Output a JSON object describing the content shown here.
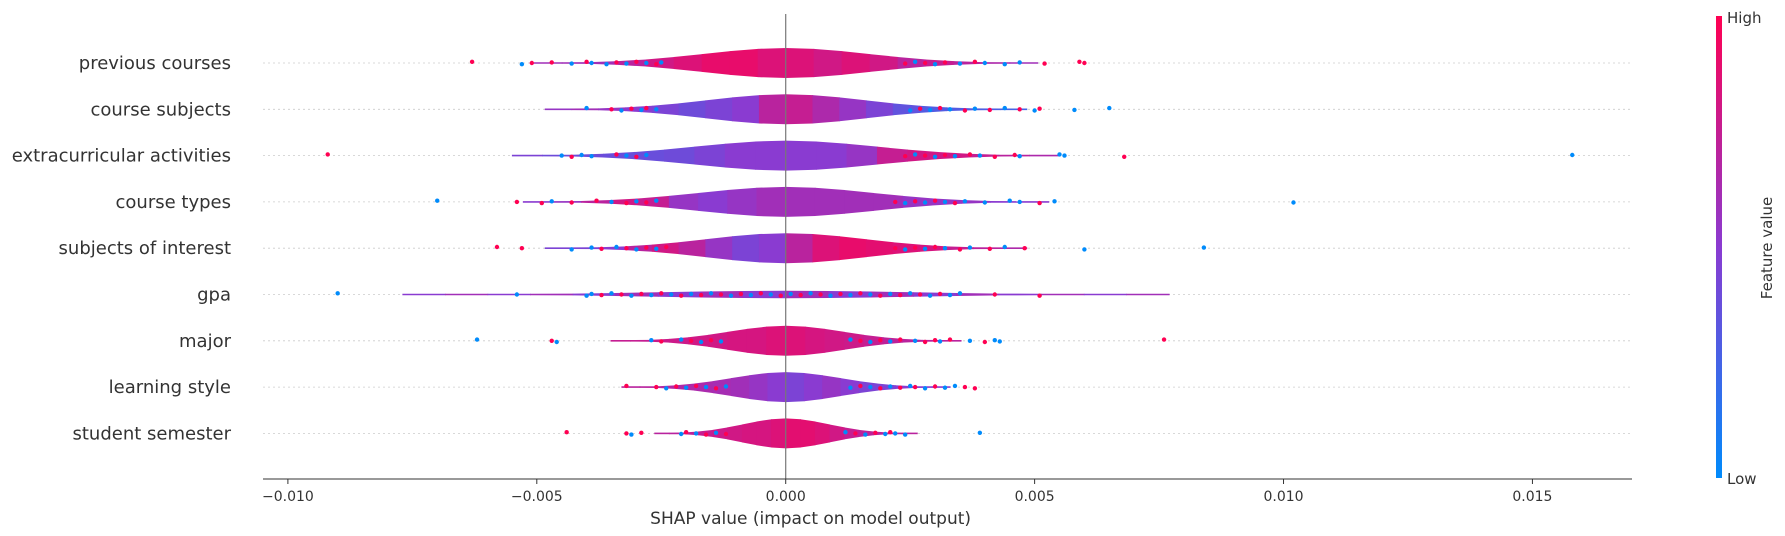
{
  "chart_data": {
    "type": "violin-beeswarm",
    "xlabel": "SHAP value (impact on model output)",
    "xlim": [
      -0.0105,
      0.017
    ],
    "xticks": [
      -0.01,
      -0.005,
      0.0,
      0.005,
      0.01,
      0.015
    ],
    "xtick_labels": [
      "−0.010",
      "−0.005",
      "0.000",
      "0.005",
      "0.010",
      "0.015"
    ],
    "colorbar": {
      "title": "Feature value",
      "high_label": "High",
      "low_label": "Low",
      "low_color": "#008bfb",
      "mid_color": "#8a3bd1",
      "high_color": "#ff0052"
    },
    "features": [
      {
        "name": "previous courses",
        "spread": 0.0023,
        "amp": 1.0,
        "points": [
          [
            -0.0063,
            1
          ],
          [
            -0.0051,
            1
          ],
          [
            -0.0053,
            0
          ],
          [
            -0.0047,
            1
          ],
          [
            -0.0043,
            0
          ],
          [
            -0.004,
            1
          ],
          [
            -0.0039,
            0
          ],
          [
            -0.0036,
            0
          ],
          [
            -0.0034,
            1
          ],
          [
            -0.0032,
            0
          ],
          [
            -0.003,
            1
          ],
          [
            -0.0028,
            0
          ],
          [
            -0.0026,
            1
          ],
          [
            -0.0025,
            0
          ],
          [
            0.0024,
            1
          ],
          [
            0.0026,
            0
          ],
          [
            0.0028,
            1
          ],
          [
            0.003,
            0
          ],
          [
            0.0032,
            1
          ],
          [
            0.0035,
            0
          ],
          [
            0.0038,
            1
          ],
          [
            0.004,
            0
          ],
          [
            0.0044,
            0
          ],
          [
            0.0047,
            0
          ],
          [
            0.0052,
            1
          ],
          [
            0.0059,
            1
          ],
          [
            0.006,
            1
          ]
        ],
        "segments": [
          0.6,
          0.6,
          0.6,
          0.7,
          0.8,
          0.85,
          0.9,
          0.9,
          0.85,
          0.85,
          0.8,
          0.85,
          0.8,
          0.7,
          0.75,
          0.7,
          0.65,
          0.6
        ]
      },
      {
        "name": "course subjects",
        "spread": 0.0022,
        "amp": 1.0,
        "points": [
          [
            -0.004,
            0
          ],
          [
            -0.0035,
            1
          ],
          [
            -0.0033,
            0
          ],
          [
            -0.0031,
            1
          ],
          [
            -0.0029,
            0
          ],
          [
            -0.0028,
            1
          ],
          [
            -0.0026,
            0
          ],
          [
            0.0025,
            0
          ],
          [
            0.0027,
            1
          ],
          [
            0.0029,
            0
          ],
          [
            0.0031,
            1
          ],
          [
            0.0033,
            0
          ],
          [
            0.0036,
            1
          ],
          [
            0.0038,
            0
          ],
          [
            0.0041,
            1
          ],
          [
            0.0044,
            0
          ],
          [
            0.0047,
            1
          ],
          [
            0.005,
            0
          ],
          [
            0.0051,
            1
          ],
          [
            0.0058,
            0
          ],
          [
            0.0065,
            0
          ]
        ],
        "segments": [
          0.55,
          0.6,
          0.55,
          0.5,
          0.45,
          0.4,
          0.45,
          0.5,
          0.7,
          0.75,
          0.65,
          0.55,
          0.45,
          0.35,
          0.3,
          0.3,
          0.28,
          0.25
        ]
      },
      {
        "name": "extracurricular activities",
        "spread": 0.0025,
        "amp": 1.0,
        "points": [
          [
            -0.0092,
            1
          ],
          [
            -0.0045,
            0
          ],
          [
            -0.0043,
            1
          ],
          [
            -0.0041,
            0
          ],
          [
            -0.0039,
            0
          ],
          [
            -0.0034,
            1
          ],
          [
            -0.0032,
            0
          ],
          [
            -0.003,
            1
          ],
          [
            -0.0028,
            0
          ],
          [
            0.0024,
            1
          ],
          [
            0.0026,
            0
          ],
          [
            0.0028,
            1
          ],
          [
            0.003,
            0
          ],
          [
            0.0032,
            1
          ],
          [
            0.0034,
            0
          ],
          [
            0.0037,
            1
          ],
          [
            0.0039,
            0
          ],
          [
            0.0042,
            1
          ],
          [
            0.0046,
            1
          ],
          [
            0.0047,
            0
          ],
          [
            0.0055,
            0
          ],
          [
            0.0056,
            0
          ],
          [
            0.0068,
            1
          ],
          [
            0.0158,
            0
          ]
        ],
        "segments": [
          0.45,
          0.4,
          0.4,
          0.38,
          0.38,
          0.4,
          0.45,
          0.5,
          0.5,
          0.5,
          0.5,
          0.55,
          0.75,
          0.8,
          0.8,
          0.75,
          0.7,
          0.65
        ]
      },
      {
        "name": "course types",
        "spread": 0.0024,
        "amp": 1.0,
        "points": [
          [
            -0.007,
            0
          ],
          [
            -0.0054,
            1
          ],
          [
            -0.0049,
            1
          ],
          [
            -0.0047,
            0
          ],
          [
            -0.0043,
            1
          ],
          [
            -0.0038,
            1
          ],
          [
            -0.0035,
            0
          ],
          [
            -0.0032,
            1
          ],
          [
            -0.003,
            0
          ],
          [
            -0.0028,
            1
          ],
          [
            -0.0026,
            0
          ],
          [
            0.0022,
            1
          ],
          [
            0.0024,
            0
          ],
          [
            0.0026,
            1
          ],
          [
            0.0028,
            0
          ],
          [
            0.003,
            1
          ],
          [
            0.0032,
            0
          ],
          [
            0.0034,
            1
          ],
          [
            0.0036,
            0
          ],
          [
            0.004,
            0
          ],
          [
            0.0045,
            0
          ],
          [
            0.0047,
            0
          ],
          [
            0.0051,
            1
          ],
          [
            0.0054,
            0
          ],
          [
            0.0102,
            0
          ]
        ],
        "segments": [
          0.5,
          0.55,
          0.7,
          0.8,
          0.75,
          0.55,
          0.5,
          0.55,
          0.6,
          0.6,
          0.6,
          0.6,
          0.6,
          0.55,
          0.55,
          0.55,
          0.5,
          0.5
        ]
      },
      {
        "name": "subjects of interest",
        "spread": 0.0022,
        "amp": 1.0,
        "points": [
          [
            -0.0058,
            1
          ],
          [
            -0.0053,
            1
          ],
          [
            -0.0043,
            0
          ],
          [
            -0.0039,
            0
          ],
          [
            -0.0037,
            1
          ],
          [
            -0.0034,
            0
          ],
          [
            -0.0032,
            1
          ],
          [
            -0.003,
            0
          ],
          [
            -0.0028,
            1
          ],
          [
            -0.0026,
            0
          ],
          [
            -0.0024,
            1
          ],
          [
            0.0022,
            1
          ],
          [
            0.0024,
            0
          ],
          [
            0.0026,
            1
          ],
          [
            0.0028,
            0
          ],
          [
            0.003,
            1
          ],
          [
            0.0032,
            0
          ],
          [
            0.0035,
            1
          ],
          [
            0.0037,
            0
          ],
          [
            0.0041,
            1
          ],
          [
            0.0044,
            0
          ],
          [
            0.0048,
            1
          ],
          [
            0.006,
            0
          ],
          [
            0.0084,
            0
          ]
        ],
        "segments": [
          0.45,
          0.45,
          0.5,
          0.7,
          0.8,
          0.7,
          0.55,
          0.45,
          0.5,
          0.7,
          0.85,
          0.9,
          0.88,
          0.85,
          0.82,
          0.75,
          0.7,
          0.65
        ]
      },
      {
        "name": "gpa",
        "spread": 0.0035,
        "amp": 0.25,
        "points": [
          [
            -0.009,
            0
          ],
          [
            -0.0054,
            0
          ],
          [
            -0.004,
            0
          ],
          [
            -0.0039,
            0
          ],
          [
            -0.0037,
            1
          ],
          [
            -0.0035,
            0
          ],
          [
            -0.0033,
            1
          ],
          [
            -0.0031,
            0
          ],
          [
            -0.0029,
            1
          ],
          [
            -0.0027,
            0
          ],
          [
            -0.0025,
            1
          ],
          [
            -0.0023,
            0
          ],
          [
            -0.0021,
            1
          ],
          [
            -0.0019,
            0
          ],
          [
            -0.0017,
            1
          ],
          [
            -0.0015,
            0
          ],
          [
            -0.0013,
            1
          ],
          [
            -0.0011,
            0
          ],
          [
            -0.0009,
            1
          ],
          [
            -0.0007,
            0
          ],
          [
            -0.0005,
            1
          ],
          [
            -0.0003,
            0
          ],
          [
            -0.0001,
            1
          ],
          [
            0.0001,
            0
          ],
          [
            0.0003,
            1
          ],
          [
            0.0005,
            0
          ],
          [
            0.0007,
            1
          ],
          [
            0.0009,
            0
          ],
          [
            0.0011,
            1
          ],
          [
            0.0013,
            0
          ],
          [
            0.0015,
            1
          ],
          [
            0.0017,
            0
          ],
          [
            0.0019,
            1
          ],
          [
            0.0021,
            0
          ],
          [
            0.0023,
            1
          ],
          [
            0.0025,
            0
          ],
          [
            0.0027,
            1
          ],
          [
            0.0029,
            0
          ],
          [
            0.0031,
            1
          ],
          [
            0.0033,
            0
          ],
          [
            0.0035,
            0
          ],
          [
            0.0042,
            1
          ],
          [
            0.0051,
            1
          ]
        ],
        "segments": [
          0.5,
          0.6,
          0.5,
          0.6,
          0.5,
          0.6,
          0.5,
          0.6,
          0.5,
          0.6,
          0.5,
          0.6,
          0.5,
          0.6,
          0.5,
          0.6,
          0.5,
          0.6
        ]
      },
      {
        "name": "major",
        "spread": 0.0016,
        "amp": 1.0,
        "points": [
          [
            -0.0062,
            0
          ],
          [
            -0.0047,
            1
          ],
          [
            -0.0046,
            0
          ],
          [
            -0.0027,
            0
          ],
          [
            -0.0025,
            1
          ],
          [
            -0.0021,
            0
          ],
          [
            -0.0019,
            1
          ],
          [
            -0.0017,
            0
          ],
          [
            -0.0015,
            1
          ],
          [
            -0.0013,
            0
          ],
          [
            0.0013,
            0
          ],
          [
            0.0015,
            1
          ],
          [
            0.0017,
            0
          ],
          [
            0.0019,
            1
          ],
          [
            0.0021,
            0
          ],
          [
            0.0023,
            1
          ],
          [
            0.0026,
            0
          ],
          [
            0.0028,
            1
          ],
          [
            0.003,
            1
          ],
          [
            0.0031,
            0
          ],
          [
            0.0033,
            1
          ],
          [
            0.0037,
            0
          ],
          [
            0.004,
            1
          ],
          [
            0.0042,
            0
          ],
          [
            0.0043,
            0
          ],
          [
            0.0076,
            1
          ]
        ],
        "segments": [
          0.75,
          0.75,
          0.78,
          0.78,
          0.8,
          0.8,
          0.82,
          0.82,
          0.85,
          0.85,
          0.82,
          0.8,
          0.78,
          0.75,
          0.72,
          0.7,
          0.7,
          0.7
        ]
      },
      {
        "name": "learning style",
        "spread": 0.0015,
        "amp": 1.0,
        "points": [
          [
            -0.0032,
            1
          ],
          [
            -0.0026,
            1
          ],
          [
            -0.0024,
            0
          ],
          [
            -0.0022,
            1
          ],
          [
            -0.002,
            0
          ],
          [
            -0.0018,
            1
          ],
          [
            -0.0016,
            0
          ],
          [
            -0.0014,
            1
          ],
          [
            -0.0012,
            0
          ],
          [
            0.0013,
            0
          ],
          [
            0.0015,
            1
          ],
          [
            0.0017,
            0
          ],
          [
            0.0019,
            1
          ],
          [
            0.0021,
            0
          ],
          [
            0.0023,
            1
          ],
          [
            0.0025,
            0
          ],
          [
            0.0026,
            1
          ],
          [
            0.0028,
            0
          ],
          [
            0.003,
            1
          ],
          [
            0.0032,
            0
          ],
          [
            0.0034,
            0
          ],
          [
            0.0036,
            1
          ],
          [
            0.0038,
            1
          ]
        ],
        "segments": [
          0.7,
          0.7,
          0.68,
          0.66,
          0.64,
          0.62,
          0.6,
          0.55,
          0.5,
          0.45,
          0.5,
          0.55,
          0.5,
          0.45,
          0.45,
          0.5,
          0.5,
          0.5
        ]
      },
      {
        "name": "student semester",
        "spread": 0.0012,
        "amp": 1.0,
        "points": [
          [
            -0.0044,
            1
          ],
          [
            -0.0032,
            1
          ],
          [
            -0.0031,
            0
          ],
          [
            -0.0029,
            1
          ],
          [
            -0.0021,
            0
          ],
          [
            -0.002,
            1
          ],
          [
            -0.0018,
            0
          ],
          [
            -0.0016,
            1
          ],
          [
            -0.0014,
            0
          ],
          [
            -0.0012,
            1
          ],
          [
            0.0012,
            0
          ],
          [
            0.0014,
            1
          ],
          [
            0.0016,
            0
          ],
          [
            0.0018,
            1
          ],
          [
            0.002,
            0
          ],
          [
            0.0021,
            1
          ],
          [
            0.0022,
            0
          ],
          [
            0.0024,
            0
          ],
          [
            0.0039,
            0
          ]
        ],
        "segments": [
          0.7,
          0.7,
          0.72,
          0.75,
          0.78,
          0.8,
          0.82,
          0.82,
          0.85,
          0.88,
          0.88,
          0.85,
          0.8,
          0.75,
          0.72,
          0.7,
          0.7,
          0.7
        ]
      }
    ]
  }
}
